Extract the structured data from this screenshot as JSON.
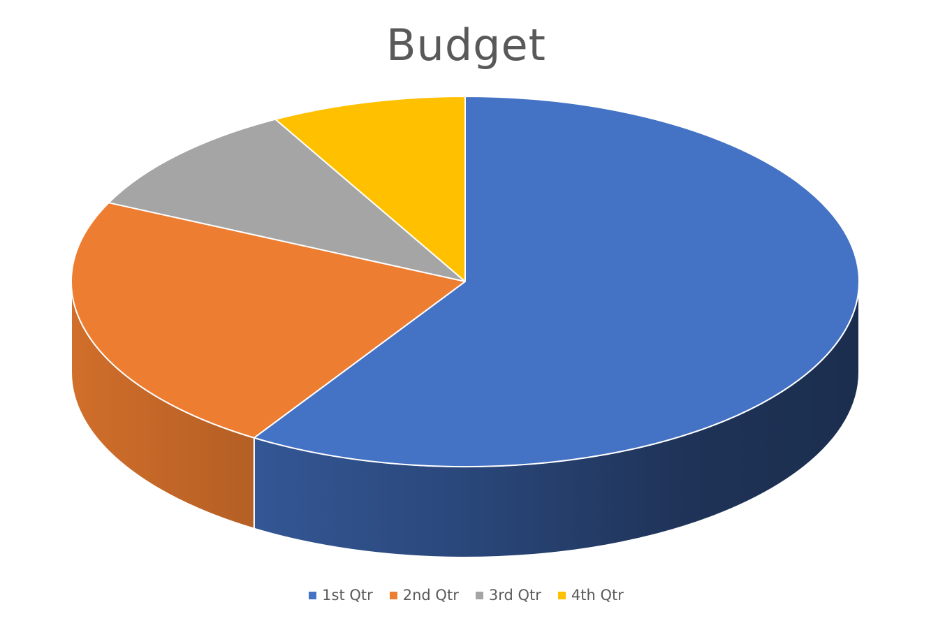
{
  "chart_data": {
    "type": "pie",
    "style": "3d",
    "title": "Budget",
    "categories": [
      "1st Qtr",
      "2nd Qtr",
      "3rd Qtr",
      "4th Qtr"
    ],
    "values": [
      59,
      23,
      10,
      8
    ],
    "colors": [
      "#4472c4",
      "#ed7d31",
      "#a5a5a5",
      "#ffc000"
    ],
    "legend_position": "bottom"
  }
}
